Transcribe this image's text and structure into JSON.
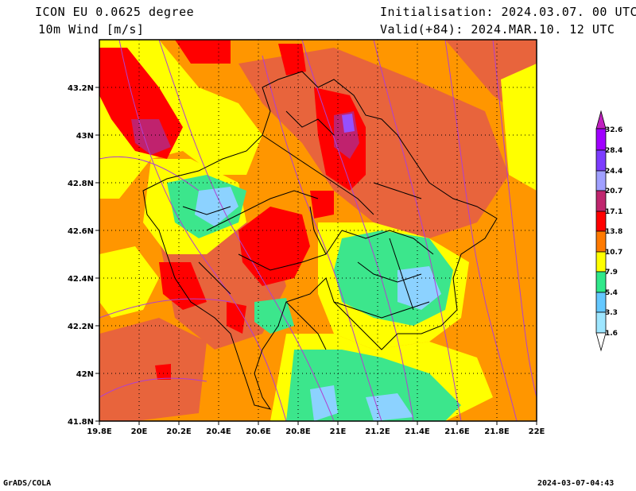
{
  "header": {
    "model": "ICON EU 0.0625 degree",
    "field": "10m Wind [m/s]",
    "init": "Initialisation: 2024.03.07. 00 UTC",
    "valid": "Valid(+84): 2024.MAR.10. 12 UTC"
  },
  "footer": {
    "credit": "GrADS/COLA",
    "timestamp": "2024-03-07-04:43"
  },
  "axes": {
    "lon_labels": [
      "19.8E",
      "20E",
      "20.2E",
      "20.4E",
      "20.6E",
      "20.8E",
      "21E",
      "21.2E",
      "21.4E",
      "21.6E",
      "21.8E",
      "22E"
    ],
    "lat_labels": [
      "43.2N",
      "43N",
      "42.8N",
      "42.6N",
      "42.4N",
      "42.2N",
      "42N",
      "41.8N"
    ],
    "lon_range": [
      19.8,
      22.0
    ],
    "lat_range": [
      41.8,
      43.4
    ]
  },
  "legend": {
    "labels": [
      "32.6",
      "28.4",
      "24.4",
      "20.7",
      "17.1",
      "13.8",
      "10.7",
      "7.9",
      "5.4",
      "3.3",
      "1.6"
    ],
    "colors": [
      "#a000ff",
      "#7c3cff",
      "#a0a0ff",
      "#c0266e",
      "#ff0000",
      "#ff7a00",
      "#ffff00",
      "#30e88a",
      "#64c8ff",
      "#9ee6ff",
      "#ffffff"
    ]
  },
  "palette": {
    "red": "#ff0000",
    "orange_red": "#e8643c",
    "orange": "#ff9600",
    "yellow": "#ffff00",
    "green": "#3ce68c",
    "light_blue": "#8cd2ff",
    "magenta": "#c0226e",
    "violet": "#9650ff",
    "streamline": "#b040d0"
  }
}
